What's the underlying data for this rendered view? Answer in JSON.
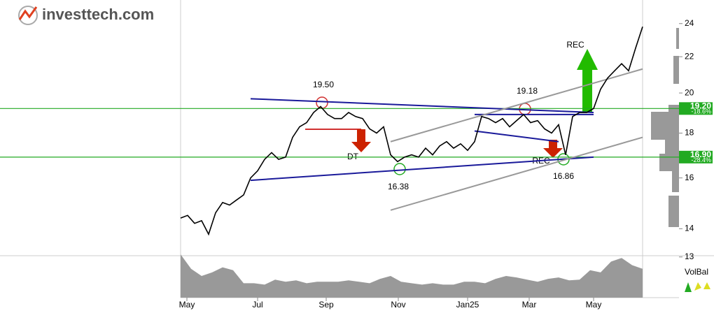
{
  "brand": "investtech.com",
  "chart_data": {
    "type": "line",
    "log_scale": true,
    "series": [
      {
        "name": "Price",
        "color": "#000000",
        "values": [
          14.4,
          14.5,
          14.2,
          14.3,
          13.8,
          14.6,
          15.0,
          14.9,
          15.1,
          15.3,
          16.0,
          16.3,
          16.8,
          17.1,
          16.8,
          16.9,
          17.8,
          18.3,
          18.5,
          19.0,
          19.3,
          18.9,
          18.7,
          18.7,
          19.0,
          18.8,
          18.7,
          18.2,
          18.0,
          18.3,
          17.0,
          16.7,
          16.9,
          17.0,
          16.9,
          17.3,
          17.0,
          17.4,
          17.6,
          17.3,
          17.5,
          17.2,
          17.6,
          18.8,
          18.7,
          18.5,
          18.7,
          18.3,
          18.6,
          18.9,
          18.5,
          18.6,
          18.2,
          18.0,
          18.4,
          17.0,
          18.8,
          19.0,
          19.0,
          19.2,
          20.2,
          20.8,
          21.2,
          21.6,
          21.2,
          22.5,
          23.8
        ]
      }
    ],
    "xlim": [
      0,
      66
    ],
    "xticks": [
      {
        "value": 0.9,
        "label": "May"
      },
      {
        "value": 11,
        "label": "Jul"
      },
      {
        "value": 20.8,
        "label": "Sep"
      },
      {
        "value": 31.1,
        "label": "Nov"
      },
      {
        "value": 41,
        "label": "Jan25"
      },
      {
        "value": 49.8,
        "label": "Mar"
      },
      {
        "value": 59,
        "label": "May"
      }
    ],
    "ylim": [
      12.9,
      25.3
    ],
    "yticks": [
      13,
      14,
      16,
      18,
      20,
      22,
      24
    ],
    "levels": [
      {
        "value": 19.2,
        "label": "19.20",
        "change": "-18.6%",
        "color": "#22aa22"
      },
      {
        "value": 16.9,
        "label": "16.90",
        "change": "-28.4%",
        "color": "#22aa22"
      }
    ],
    "trendlines": [
      {
        "color": "#1a1a9a",
        "x": [
          10,
          59
        ],
        "y": [
          19.7,
          19.0
        ]
      },
      {
        "color": "#1a1a9a",
        "x": [
          10,
          59
        ],
        "y": [
          15.9,
          16.9
        ]
      },
      {
        "color": "#1a1a9a",
        "x": [
          42,
          54
        ],
        "y": [
          18.1,
          17.6
        ]
      },
      {
        "color": "#1a1a9a",
        "x": [
          42,
          59
        ],
        "y": [
          18.9,
          18.9
        ]
      },
      {
        "color": "#999999",
        "x": [
          30,
          66
        ],
        "y": [
          17.6,
          21.3
        ]
      },
      {
        "color": "#999999",
        "x": [
          30,
          66
        ],
        "y": [
          14.7,
          17.8
        ]
      }
    ],
    "annotations": [
      "19.50",
      "DT",
      "16.38",
      "19.18",
      "REC",
      "16.86",
      "REC"
    ],
    "volume_label": "VolBal",
    "volume": [
      60,
      40,
      30,
      35,
      42,
      38,
      20,
      20,
      18,
      25,
      22,
      24,
      20,
      22,
      22,
      22,
      24,
      22,
      20,
      26,
      30,
      22,
      20,
      18,
      20,
      18,
      18,
      22,
      22,
      20,
      26,
      30,
      28,
      25,
      22,
      26,
      28,
      24,
      25,
      38,
      35,
      50,
      55,
      45,
      40
    ],
    "volume_ylim": [
      0,
      62
    ]
  }
}
